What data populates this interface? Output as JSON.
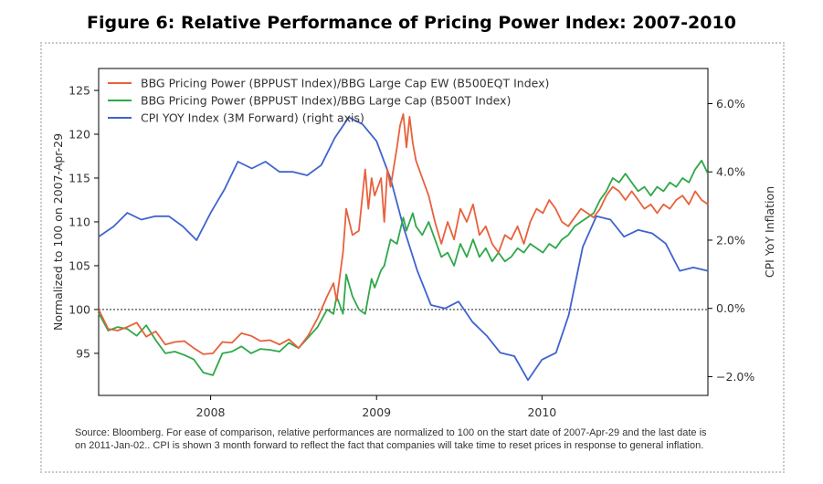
{
  "figure_title": "Figure 6: Relative Performance of Pricing Power Index: 2007-2010",
  "source_note": "Source: Bloomberg. For ease of comparison, relative performances are normalized to 100 on the start date of 2007-Apr-29 and the last date is on 2011-Jan-02.. CPI is shown 3 month forward to reflect the fact that companies will take time to reset prices in response to general inflation.",
  "chart_data": {
    "type": "line",
    "ylabel": "Normalized to 100 on 2007-Apr-29",
    "y2label": "CPI YoY Inflation",
    "xlim": [
      "2007-04-29",
      "2011-01-02"
    ],
    "ylim": [
      90.2,
      127.5
    ],
    "y2lim": [
      -2.55,
      7.03
    ],
    "x_ticks": [
      {
        "date": "2008-01-01",
        "label": "2008"
      },
      {
        "date": "2009-01-01",
        "label": "2009"
      },
      {
        "date": "2010-01-01",
        "label": "2010"
      }
    ],
    "y_ticks": [
      95,
      100,
      105,
      110,
      115,
      120,
      125
    ],
    "y2_ticks": [
      {
        "value": -2.0,
        "label": "−2.0%"
      },
      {
        "value": 0.0,
        "label": "0.0%"
      },
      {
        "value": 2.0,
        "label": "2.0%"
      },
      {
        "value": 4.0,
        "label": "4.0%"
      },
      {
        "value": 6.0,
        "label": "6.0%"
      }
    ],
    "reference_line": {
      "y": 100,
      "style": "dotted"
    },
    "grid": false,
    "legend_position": "top-left",
    "series": [
      {
        "name": "BBG Pricing Power (BPPUST Index)/BBG Large Cap EW (B500EQT Index)",
        "color": "#e8613c",
        "axis": "left",
        "points": [
          [
            "2007-04-29",
            100.0
          ],
          [
            "2007-05-20",
            97.8
          ],
          [
            "2007-06-10",
            97.6
          ],
          [
            "2007-07-01",
            98.0
          ],
          [
            "2007-07-22",
            98.5
          ],
          [
            "2007-08-12",
            96.9
          ],
          [
            "2007-09-02",
            97.5
          ],
          [
            "2007-09-23",
            96.0
          ],
          [
            "2007-10-14",
            96.3
          ],
          [
            "2007-11-04",
            96.4
          ],
          [
            "2007-11-25",
            95.6
          ],
          [
            "2007-12-16",
            94.9
          ],
          [
            "2008-01-06",
            95.0
          ],
          [
            "2008-01-27",
            96.3
          ],
          [
            "2008-02-17",
            96.2
          ],
          [
            "2008-03-09",
            97.3
          ],
          [
            "2008-03-30",
            97.0
          ],
          [
            "2008-04-20",
            96.4
          ],
          [
            "2008-05-11",
            96.5
          ],
          [
            "2008-06-01",
            96.0
          ],
          [
            "2008-06-22",
            96.6
          ],
          [
            "2008-07-13",
            95.6
          ],
          [
            "2008-08-03",
            97.0
          ],
          [
            "2008-08-24",
            99.0
          ],
          [
            "2008-09-14",
            101.5
          ],
          [
            "2008-09-28",
            103.0
          ],
          [
            "2008-10-05",
            101.0
          ],
          [
            "2008-10-19",
            106.5
          ],
          [
            "2008-10-26",
            111.5
          ],
          [
            "2008-11-09",
            108.5
          ],
          [
            "2008-11-23",
            109.0
          ],
          [
            "2008-12-07",
            116.0
          ],
          [
            "2008-12-14",
            111.5
          ],
          [
            "2008-12-21",
            115.0
          ],
          [
            "2008-12-28",
            113.0
          ],
          [
            "2009-01-11",
            115.0
          ],
          [
            "2009-01-18",
            110.0
          ],
          [
            "2009-01-25",
            116.0
          ],
          [
            "2009-02-01",
            114.0
          ],
          [
            "2009-02-15",
            118.5
          ],
          [
            "2009-02-22",
            121.0
          ],
          [
            "2009-03-01",
            122.3
          ],
          [
            "2009-03-08",
            118.5
          ],
          [
            "2009-03-15",
            122.0
          ],
          [
            "2009-03-22",
            119.0
          ],
          [
            "2009-03-29",
            117.0
          ],
          [
            "2009-04-12",
            115.0
          ],
          [
            "2009-04-26",
            113.0
          ],
          [
            "2009-05-10",
            110.0
          ],
          [
            "2009-05-24",
            107.5
          ],
          [
            "2009-06-07",
            110.0
          ],
          [
            "2009-06-21",
            108.0
          ],
          [
            "2009-07-05",
            111.5
          ],
          [
            "2009-07-19",
            110.0
          ],
          [
            "2009-08-02",
            112.0
          ],
          [
            "2009-08-16",
            108.5
          ],
          [
            "2009-08-30",
            109.5
          ],
          [
            "2009-09-13",
            107.5
          ],
          [
            "2009-09-27",
            106.5
          ],
          [
            "2009-10-11",
            108.5
          ],
          [
            "2009-10-25",
            108.0
          ],
          [
            "2009-11-08",
            109.5
          ],
          [
            "2009-11-22",
            107.5
          ],
          [
            "2009-12-06",
            110.0
          ],
          [
            "2009-12-20",
            111.5
          ],
          [
            "2010-01-03",
            111.0
          ],
          [
            "2010-01-17",
            112.5
          ],
          [
            "2010-01-31",
            111.5
          ],
          [
            "2010-02-14",
            110.0
          ],
          [
            "2010-02-28",
            109.5
          ],
          [
            "2010-03-14",
            110.5
          ],
          [
            "2010-03-28",
            111.5
          ],
          [
            "2010-04-11",
            111.0
          ],
          [
            "2010-04-25",
            110.5
          ],
          [
            "2010-05-09",
            111.5
          ],
          [
            "2010-05-23",
            113.0
          ],
          [
            "2010-06-06",
            114.0
          ],
          [
            "2010-06-20",
            113.5
          ],
          [
            "2010-07-04",
            112.5
          ],
          [
            "2010-07-18",
            113.5
          ],
          [
            "2010-08-01",
            112.5
          ],
          [
            "2010-08-15",
            111.5
          ],
          [
            "2010-08-29",
            112.0
          ],
          [
            "2010-09-12",
            111.0
          ],
          [
            "2010-09-26",
            112.0
          ],
          [
            "2010-10-10",
            111.5
          ],
          [
            "2010-10-24",
            112.5
          ],
          [
            "2010-11-07",
            113.0
          ],
          [
            "2010-11-21",
            112.0
          ],
          [
            "2010-12-05",
            113.5
          ],
          [
            "2010-12-19",
            112.5
          ],
          [
            "2011-01-02",
            112.0
          ]
        ]
      },
      {
        "name": "BBG Pricing Power (BPPUST Index)/BBG Large Cap (B500T Index)",
        "color": "#2fa84a",
        "axis": "left",
        "points": [
          [
            "2007-04-29",
            99.6
          ],
          [
            "2007-05-20",
            97.6
          ],
          [
            "2007-06-10",
            98.0
          ],
          [
            "2007-07-01",
            97.8
          ],
          [
            "2007-07-22",
            97.0
          ],
          [
            "2007-08-12",
            98.2
          ],
          [
            "2007-09-02",
            96.5
          ],
          [
            "2007-09-23",
            95.0
          ],
          [
            "2007-10-14",
            95.2
          ],
          [
            "2007-11-04",
            94.8
          ],
          [
            "2007-11-25",
            94.3
          ],
          [
            "2007-12-16",
            92.8
          ],
          [
            "2008-01-06",
            92.5
          ],
          [
            "2008-01-27",
            95.0
          ],
          [
            "2008-02-17",
            95.2
          ],
          [
            "2008-03-09",
            95.8
          ],
          [
            "2008-03-30",
            95.0
          ],
          [
            "2008-04-20",
            95.5
          ],
          [
            "2008-05-11",
            95.4
          ],
          [
            "2008-06-01",
            95.2
          ],
          [
            "2008-06-22",
            96.2
          ],
          [
            "2008-07-13",
            95.6
          ],
          [
            "2008-08-03",
            96.8
          ],
          [
            "2008-08-24",
            98.0
          ],
          [
            "2008-09-14",
            100.0
          ],
          [
            "2008-09-28",
            99.5
          ],
          [
            "2008-10-05",
            101.5
          ],
          [
            "2008-10-19",
            99.5
          ],
          [
            "2008-10-26",
            104.0
          ],
          [
            "2008-11-09",
            101.5
          ],
          [
            "2008-11-23",
            100.0
          ],
          [
            "2008-12-07",
            99.5
          ],
          [
            "2008-12-14",
            101.5
          ],
          [
            "2008-12-21",
            103.5
          ],
          [
            "2008-12-28",
            102.5
          ],
          [
            "2009-01-11",
            104.5
          ],
          [
            "2009-01-18",
            105.0
          ],
          [
            "2009-01-25",
            106.5
          ],
          [
            "2009-02-01",
            108.0
          ],
          [
            "2009-02-15",
            107.5
          ],
          [
            "2009-02-22",
            109.0
          ],
          [
            "2009-03-01",
            110.5
          ],
          [
            "2009-03-08",
            109.0
          ],
          [
            "2009-03-15",
            110.0
          ],
          [
            "2009-03-22",
            111.0
          ],
          [
            "2009-03-29",
            109.5
          ],
          [
            "2009-04-12",
            108.5
          ],
          [
            "2009-04-26",
            110.0
          ],
          [
            "2009-05-10",
            108.0
          ],
          [
            "2009-05-24",
            106.0
          ],
          [
            "2009-06-07",
            106.5
          ],
          [
            "2009-06-21",
            105.0
          ],
          [
            "2009-07-05",
            107.5
          ],
          [
            "2009-07-19",
            106.0
          ],
          [
            "2009-08-02",
            108.0
          ],
          [
            "2009-08-16",
            106.0
          ],
          [
            "2009-08-30",
            107.0
          ],
          [
            "2009-09-13",
            105.5
          ],
          [
            "2009-09-27",
            106.5
          ],
          [
            "2009-10-11",
            105.5
          ],
          [
            "2009-10-25",
            106.0
          ],
          [
            "2009-11-08",
            107.0
          ],
          [
            "2009-11-22",
            106.5
          ],
          [
            "2009-12-06",
            107.5
          ],
          [
            "2009-12-20",
            107.0
          ],
          [
            "2010-01-03",
            106.5
          ],
          [
            "2010-01-17",
            107.5
          ],
          [
            "2010-01-31",
            107.0
          ],
          [
            "2010-02-14",
            108.0
          ],
          [
            "2010-02-28",
            108.5
          ],
          [
            "2010-03-14",
            109.5
          ],
          [
            "2010-03-28",
            110.0
          ],
          [
            "2010-04-11",
            110.5
          ],
          [
            "2010-04-25",
            111.0
          ],
          [
            "2010-05-09",
            112.5
          ],
          [
            "2010-05-23",
            113.5
          ],
          [
            "2010-06-06",
            115.0
          ],
          [
            "2010-06-20",
            114.5
          ],
          [
            "2010-07-04",
            115.5
          ],
          [
            "2010-07-18",
            114.5
          ],
          [
            "2010-08-01",
            113.5
          ],
          [
            "2010-08-15",
            114.0
          ],
          [
            "2010-08-29",
            113.0
          ],
          [
            "2010-09-12",
            114.0
          ],
          [
            "2010-09-26",
            113.5
          ],
          [
            "2010-10-10",
            114.5
          ],
          [
            "2010-10-24",
            114.0
          ],
          [
            "2010-11-07",
            115.0
          ],
          [
            "2010-11-21",
            114.5
          ],
          [
            "2010-12-05",
            116.0
          ],
          [
            "2010-12-19",
            117.0
          ],
          [
            "2011-01-02",
            115.5
          ]
        ]
      },
      {
        "name": "CPI YOY Index (3M Forward) (right axis)",
        "color": "#3f63cf",
        "axis": "right",
        "points": [
          [
            "2007-04-29",
            2.1
          ],
          [
            "2007-06-01",
            2.4
          ],
          [
            "2007-07-01",
            2.8
          ],
          [
            "2007-08-01",
            2.6
          ],
          [
            "2007-09-01",
            2.7
          ],
          [
            "2007-10-01",
            2.7
          ],
          [
            "2007-11-01",
            2.4
          ],
          [
            "2007-12-01",
            2.0
          ],
          [
            "2008-01-01",
            2.8
          ],
          [
            "2008-02-01",
            3.5
          ],
          [
            "2008-03-01",
            4.3
          ],
          [
            "2008-04-01",
            4.1
          ],
          [
            "2008-05-01",
            4.3
          ],
          [
            "2008-06-01",
            4.0
          ],
          [
            "2008-07-01",
            4.0
          ],
          [
            "2008-08-01",
            3.9
          ],
          [
            "2008-09-01",
            4.2
          ],
          [
            "2008-10-01",
            5.0
          ],
          [
            "2008-11-01",
            5.6
          ],
          [
            "2008-12-01",
            5.4
          ],
          [
            "2009-01-01",
            4.9
          ],
          [
            "2009-02-01",
            3.8
          ],
          [
            "2009-03-01",
            2.4
          ],
          [
            "2009-04-01",
            1.1
          ],
          [
            "2009-05-01",
            0.1
          ],
          [
            "2009-06-01",
            0.0
          ],
          [
            "2009-07-01",
            0.2
          ],
          [
            "2009-08-01",
            -0.4
          ],
          [
            "2009-09-01",
            -0.8
          ],
          [
            "2009-10-01",
            -1.3
          ],
          [
            "2009-11-01",
            -1.4
          ],
          [
            "2009-12-01",
            -2.1
          ],
          [
            "2010-01-01",
            -1.5
          ],
          [
            "2010-02-01",
            -1.3
          ],
          [
            "2010-03-01",
            -0.2
          ],
          [
            "2010-04-01",
            1.8
          ],
          [
            "2010-05-01",
            2.7
          ],
          [
            "2010-06-01",
            2.6
          ],
          [
            "2010-07-01",
            2.1
          ],
          [
            "2010-08-01",
            2.3
          ],
          [
            "2010-09-01",
            2.2
          ],
          [
            "2010-10-01",
            1.9
          ],
          [
            "2010-11-01",
            1.1
          ],
          [
            "2010-12-01",
            1.2
          ],
          [
            "2011-01-02",
            1.1
          ]
        ]
      }
    ]
  }
}
